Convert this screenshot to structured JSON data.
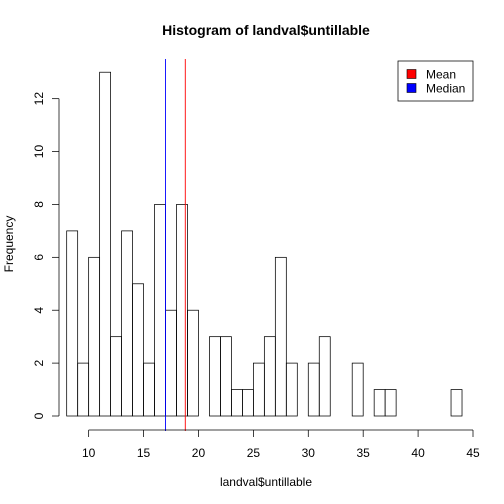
{
  "chart_data": {
    "type": "bar",
    "title": "Histogram of landval$untillable",
    "xlabel": "landval$untillable",
    "ylabel": "Frequency",
    "xlim": [
      7.3,
      45.0
    ],
    "ylim": [
      0,
      13.5
    ],
    "xticks": [
      10,
      15,
      20,
      25,
      30,
      35,
      40,
      45
    ],
    "yticks": [
      0,
      2,
      4,
      6,
      8,
      10,
      12
    ],
    "bin_width": 1,
    "bins": [
      {
        "start": 8,
        "end": 9,
        "count": 7
      },
      {
        "start": 9,
        "end": 10,
        "count": 2
      },
      {
        "start": 10,
        "end": 11,
        "count": 6
      },
      {
        "start": 11,
        "end": 12,
        "count": 13
      },
      {
        "start": 12,
        "end": 13,
        "count": 3
      },
      {
        "start": 13,
        "end": 14,
        "count": 7
      },
      {
        "start": 14,
        "end": 15,
        "count": 5
      },
      {
        "start": 15,
        "end": 16,
        "count": 2
      },
      {
        "start": 16,
        "end": 17,
        "count": 8
      },
      {
        "start": 17,
        "end": 18,
        "count": 4
      },
      {
        "start": 18,
        "end": 19,
        "count": 8
      },
      {
        "start": 19,
        "end": 20,
        "count": 4
      },
      {
        "start": 20,
        "end": 21,
        "count": 0
      },
      {
        "start": 21,
        "end": 22,
        "count": 3
      },
      {
        "start": 22,
        "end": 23,
        "count": 3
      },
      {
        "start": 23,
        "end": 24,
        "count": 1
      },
      {
        "start": 24,
        "end": 25,
        "count": 1
      },
      {
        "start": 25,
        "end": 26,
        "count": 2
      },
      {
        "start": 26,
        "end": 27,
        "count": 3
      },
      {
        "start": 27,
        "end": 28,
        "count": 6
      },
      {
        "start": 28,
        "end": 29,
        "count": 2
      },
      {
        "start": 29,
        "end": 30,
        "count": 0
      },
      {
        "start": 30,
        "end": 31,
        "count": 2
      },
      {
        "start": 31,
        "end": 32,
        "count": 3
      },
      {
        "start": 32,
        "end": 33,
        "count": 0
      },
      {
        "start": 33,
        "end": 34,
        "count": 0
      },
      {
        "start": 34,
        "end": 35,
        "count": 2
      },
      {
        "start": 35,
        "end": 36,
        "count": 0
      },
      {
        "start": 36,
        "end": 37,
        "count": 1
      },
      {
        "start": 37,
        "end": 38,
        "count": 1
      },
      {
        "start": 38,
        "end": 39,
        "count": 0
      },
      {
        "start": 39,
        "end": 40,
        "count": 0
      },
      {
        "start": 40,
        "end": 41,
        "count": 0
      },
      {
        "start": 41,
        "end": 42,
        "count": 0
      },
      {
        "start": 42,
        "end": 43,
        "count": 0
      },
      {
        "start": 43,
        "end": 44,
        "count": 1
      }
    ],
    "reference_lines": [
      {
        "name": "Mean",
        "value": 18.8,
        "color": "#ff0000"
      },
      {
        "name": "Median",
        "value": 17.0,
        "color": "#0000ff"
      }
    ],
    "legend": {
      "position": "top-right",
      "entries": [
        {
          "label": "Mean",
          "color": "#ff0000"
        },
        {
          "label": "Median",
          "color": "#0000ff"
        }
      ]
    },
    "grid": false
  }
}
